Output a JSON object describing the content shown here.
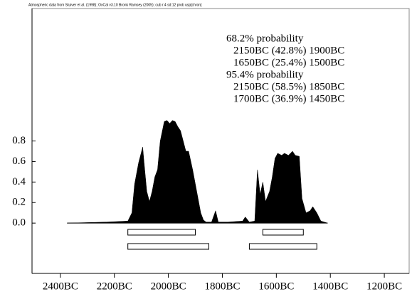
{
  "chart_data": {
    "type": "area",
    "header": "Atmospheric data from Stuiver et al. (1998); OxCal v3.10 Bronk Ramsey (2005); cub r:4 sd:12 prob usp[chron]",
    "color": "#000000",
    "x": [
      2375,
      2230,
      2150,
      2135,
      2125,
      2110,
      2095,
      2090,
      2080,
      2070,
      2060,
      2050,
      2040,
      2030,
      2015,
      2005,
      1995,
      1985,
      1975,
      1965,
      1955,
      1945,
      1935,
      1925,
      1910,
      1900,
      1890,
      1880,
      1870,
      1860,
      1840,
      1825,
      1815,
      1780,
      1725,
      1715,
      1700,
      1680,
      1670,
      1660,
      1650,
      1640,
      1625,
      1615,
      1605,
      1595,
      1580,
      1570,
      1555,
      1540,
      1530,
      1515,
      1505,
      1490,
      1475,
      1465,
      1450,
      1435,
      1410
    ],
    "values": [
      0,
      0.01,
      0.02,
      0.1,
      0.38,
      0.59,
      0.74,
      0.59,
      0.31,
      0.21,
      0.31,
      0.45,
      0.52,
      0.8,
      0.99,
      1.0,
      0.97,
      1.0,
      0.99,
      0.94,
      0.9,
      0.8,
      0.7,
      0.7,
      0.52,
      0.38,
      0.24,
      0.1,
      0.03,
      0.01,
      0.01,
      0.12,
      0.01,
      0.01,
      0.02,
      0.06,
      0.01,
      0.02,
      0.52,
      0.28,
      0.4,
      0.21,
      0.31,
      0.45,
      0.63,
      0.68,
      0.66,
      0.68,
      0.66,
      0.7,
      0.66,
      0.65,
      0.24,
      0.1,
      0.12,
      0.16,
      0.1,
      0.02,
      0
    ],
    "xlim": [
      2505,
      1108
    ],
    "xticks": [
      {
        "value": 2400,
        "label": "2400BC"
      },
      {
        "value": 2200,
        "label": "2200BC"
      },
      {
        "value": 2000,
        "label": "2000BC"
      },
      {
        "value": 1800,
        "label": "1800BC"
      },
      {
        "value": 1600,
        "label": "1600BC"
      },
      {
        "value": 1400,
        "label": "1400BC"
      },
      {
        "value": 1200,
        "label": "1200BC"
      }
    ],
    "ylim": [
      -0.49,
      2.09
    ],
    "yticks": [
      {
        "value": 0,
        "label": "0.0"
      },
      0.2,
      0.4,
      0.6,
      0.8
    ],
    "ranges": [
      {
        "level": "68.2% probability",
        "intervals": [
          {
            "from": 2150,
            "to": 1900,
            "label": "2150BC (42.8%) 1900BC"
          },
          {
            "from": 1650,
            "to": 1500,
            "label": "1650BC (25.4%) 1500BC"
          }
        ]
      },
      {
        "level": "95.4% probability",
        "intervals": [
          {
            "from": 2150,
            "to": 1850,
            "label": "2150BC (58.5%) 1850BC"
          },
          {
            "from": 1700,
            "to": 1450,
            "label": "1700BC (36.9%) 1450BC"
          }
        ]
      }
    ]
  }
}
